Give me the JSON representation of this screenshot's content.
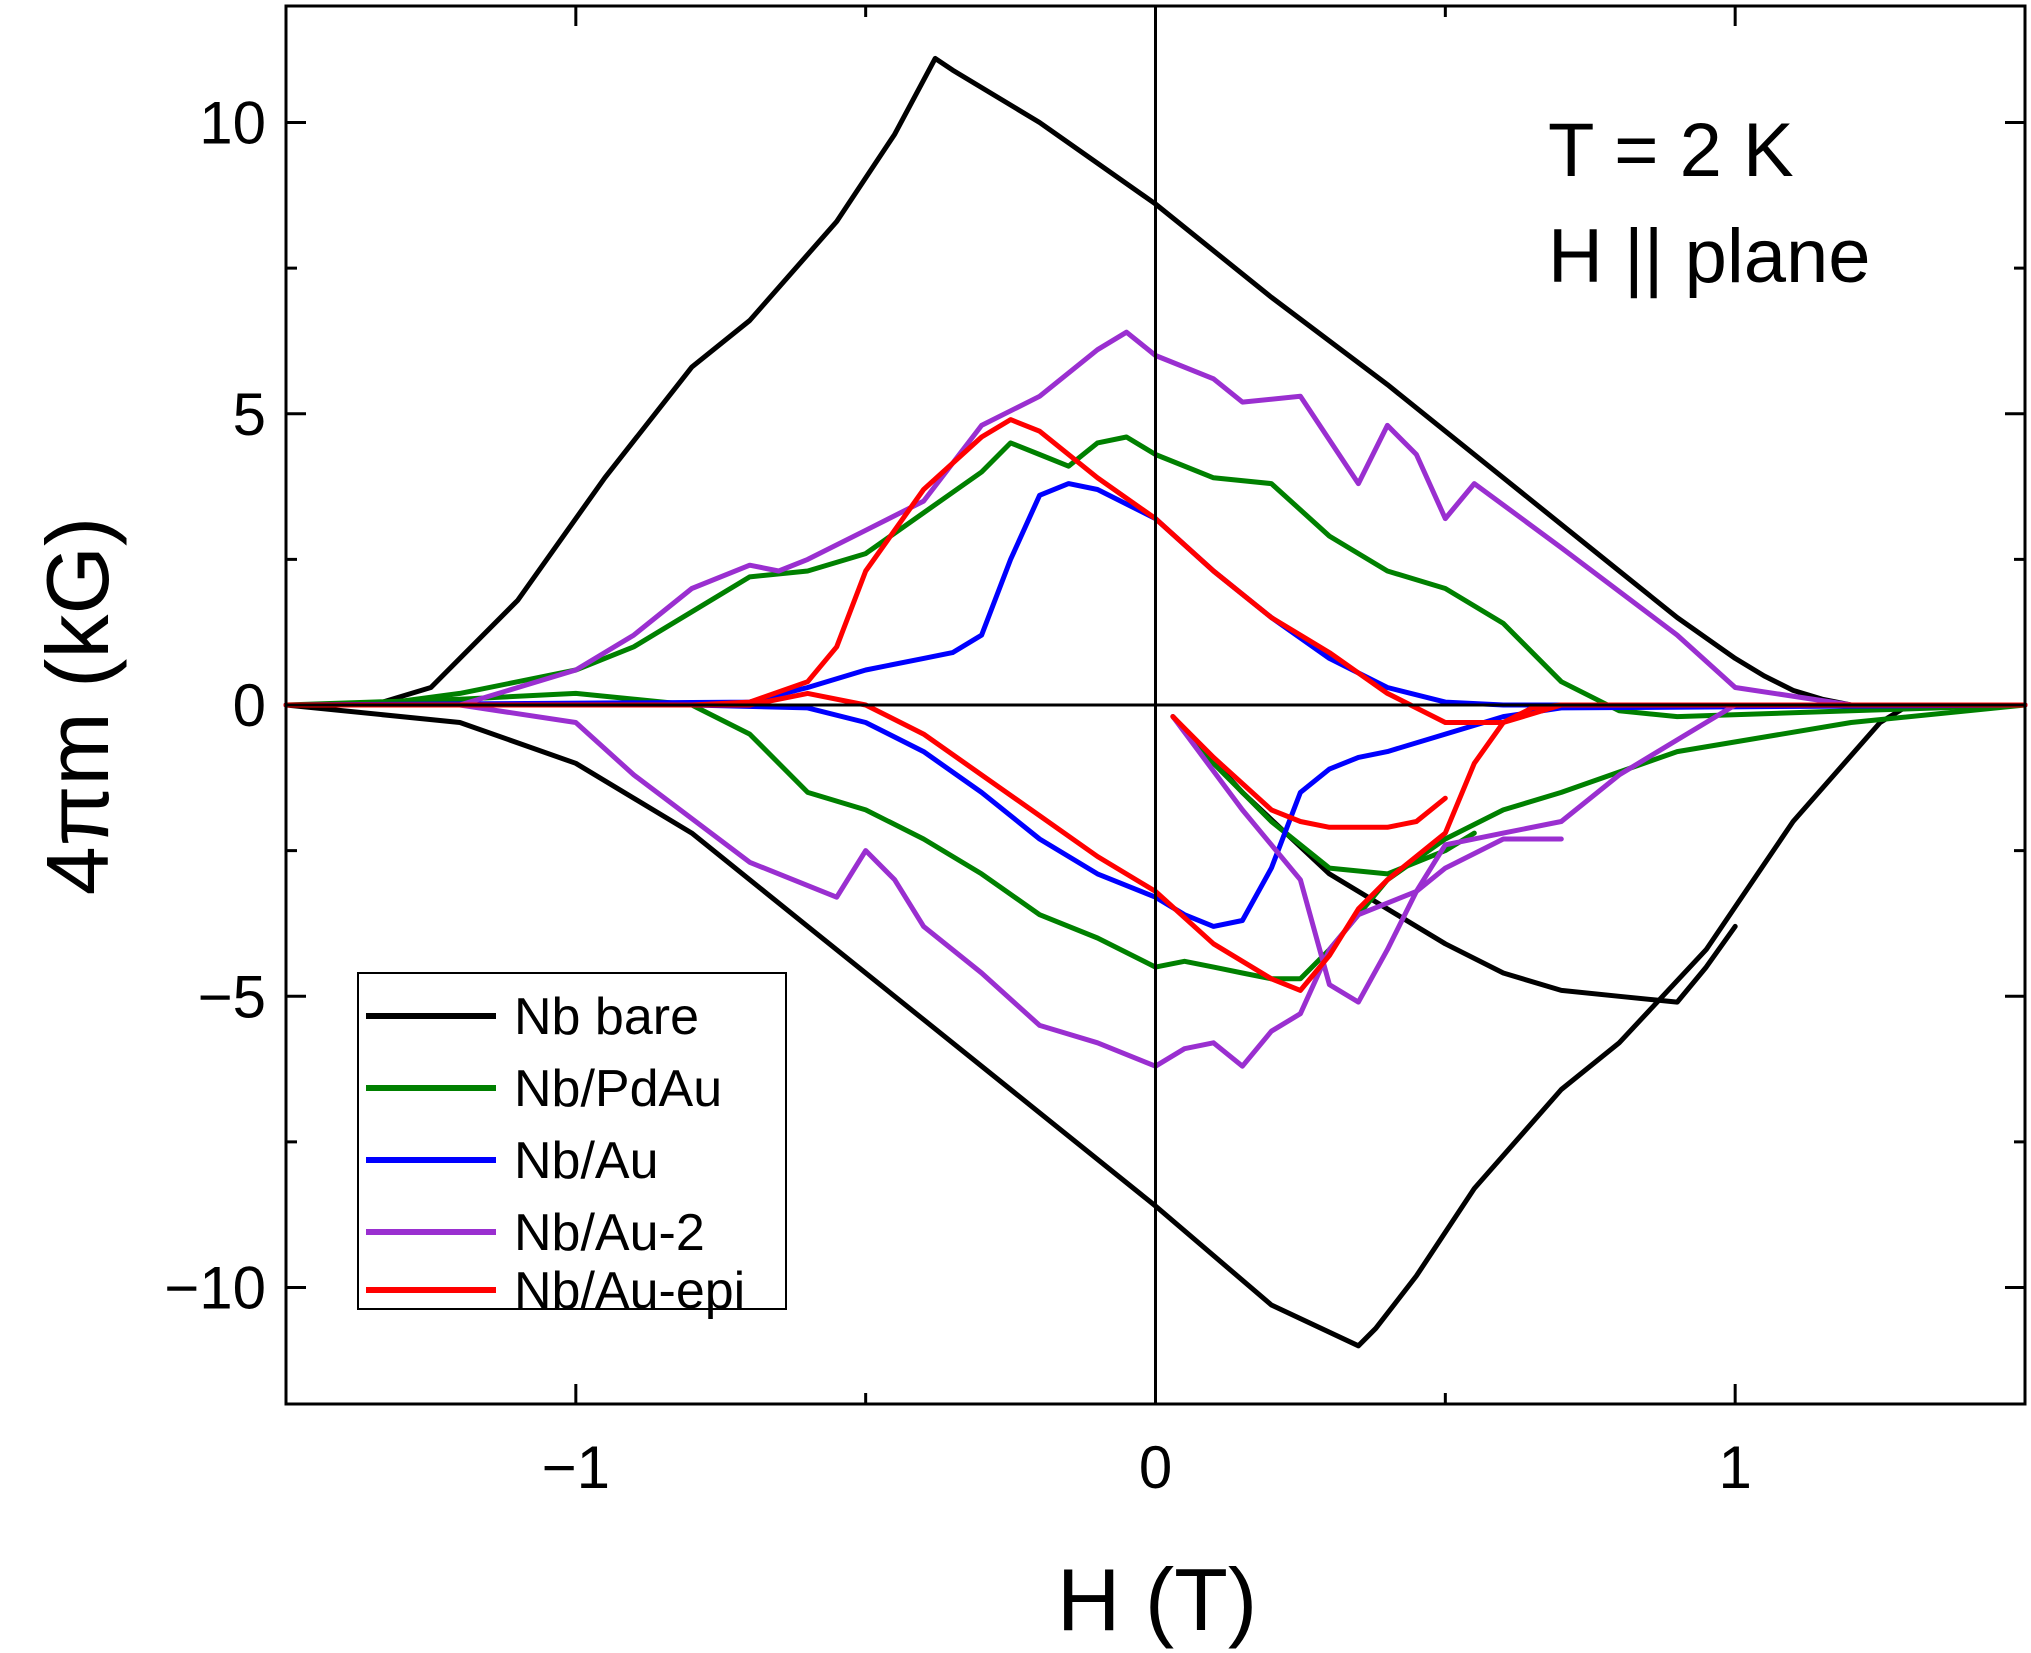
{
  "chart_data": {
    "type": "line",
    "title": "",
    "xlabel": "H (T)",
    "ylabel": "4πm (kG)",
    "xlim": [
      -1.5,
      1.5
    ],
    "ylim": [
      -12,
      12
    ],
    "xticks": [
      -1,
      0,
      1
    ],
    "xtick_labels": [
      "−1",
      "0",
      "1"
    ],
    "xminor": [
      -1.5,
      -0.5,
      0.5,
      1.5
    ],
    "yticks": [
      -10,
      -5,
      0,
      5,
      10
    ],
    "ytick_labels": [
      "−10",
      "−5",
      "0",
      "5",
      "10"
    ],
    "yminor": [
      -12.5,
      -7.5,
      -2.5,
      2.5,
      7.5
    ],
    "grid": false,
    "zero_lines": true,
    "legend_position": "bottom-left",
    "annotations": [
      "T = 2 K",
      "H || plane"
    ],
    "series": [
      {
        "name": "Nb bare",
        "color": "#000000",
        "branches": [
          {
            "x": [
              1.5,
              1.2,
              1.15,
              1.1,
              1.05,
              1.0,
              0.9,
              0.8,
              0.6,
              0.4,
              0.2,
              0.0,
              -0.2,
              -0.35,
              -0.38,
              -0.45,
              -0.55,
              -0.7,
              -0.8,
              -0.95,
              -1.1,
              -1.25,
              -1.35,
              -1.5
            ],
            "y": [
              0.0,
              0.0,
              0.1,
              0.25,
              0.5,
              0.8,
              1.5,
              2.3,
              3.9,
              5.5,
              7.0,
              8.6,
              10.0,
              10.9,
              11.1,
              9.8,
              8.3,
              6.6,
              5.8,
              3.9,
              1.8,
              0.3,
              0.0,
              0.0
            ]
          },
          {
            "x": [
              -1.5,
              -1.2,
              -1.0,
              -0.8,
              -0.6,
              -0.4,
              -0.2,
              0.0,
              0.2,
              0.35,
              0.38,
              0.45,
              0.55,
              0.7,
              0.8,
              0.95,
              1.1,
              1.25,
              1.3,
              1.5
            ],
            "y": [
              0.0,
              -0.3,
              -1.0,
              -2.2,
              -3.8,
              -5.4,
              -7.0,
              -8.6,
              -10.3,
              -11.0,
              -10.7,
              -9.8,
              -8.3,
              -6.6,
              -5.8,
              -4.2,
              -2.0,
              -0.3,
              0.0,
              0.0
            ]
          },
          {
            "x": [
              0.03,
              0.15,
              0.3,
              0.5,
              0.6,
              0.7,
              0.8,
              0.9,
              0.95,
              1.0
            ],
            "y": [
              -0.2,
              -1.5,
              -2.9,
              -4.1,
              -4.6,
              -4.9,
              -5.0,
              -5.1,
              -4.5,
              -3.8
            ]
          }
        ]
      },
      {
        "name": "Nb/PdAu",
        "color": "#008000",
        "branches": [
          {
            "x": [
              1.5,
              1.2,
              0.9,
              0.8,
              0.7,
              0.6,
              0.5,
              0.4,
              0.3,
              0.2,
              0.1,
              0.0,
              -0.05,
              -0.1,
              -0.15,
              -0.2,
              -0.25,
              -0.3,
              -0.4,
              -0.5,
              -0.6,
              -0.7,
              -0.8,
              -0.9,
              -1.0,
              -1.1,
              -1.2,
              -1.35,
              -1.5
            ],
            "y": [
              0.0,
              -0.1,
              -0.2,
              -0.1,
              0.4,
              1.4,
              2.0,
              2.3,
              2.9,
              3.8,
              3.9,
              4.3,
              4.6,
              4.5,
              4.1,
              4.3,
              4.5,
              4.0,
              3.3,
              2.6,
              2.3,
              2.2,
              1.6,
              1.0,
              0.6,
              0.4,
              0.2,
              0.0,
              0.0
            ]
          },
          {
            "x": [
              -1.5,
              -1.2,
              -1.0,
              -0.8,
              -0.7,
              -0.6,
              -0.5,
              -0.4,
              -0.3,
              -0.2,
              -0.1,
              0.0,
              0.05,
              0.1,
              0.15,
              0.2,
              0.25,
              0.3,
              0.4,
              0.5,
              0.6,
              0.7,
              0.9,
              1.2,
              1.5
            ],
            "y": [
              0.0,
              0.1,
              0.2,
              0.0,
              -0.5,
              -1.5,
              -1.8,
              -2.3,
              -2.9,
              -3.6,
              -4.0,
              -4.5,
              -4.4,
              -4.5,
              -4.6,
              -4.7,
              -4.7,
              -4.2,
              -3.0,
              -2.3,
              -1.8,
              -1.5,
              -0.8,
              -0.3,
              0.0
            ]
          },
          {
            "x": [
              0.03,
              0.1,
              0.2,
              0.3,
              0.4,
              0.5,
              0.55
            ],
            "y": [
              -0.2,
              -1.0,
              -2.0,
              -2.8,
              -2.9,
              -2.5,
              -2.2
            ]
          }
        ]
      },
      {
        "name": "Nb/Au",
        "color": "#0000ff",
        "branches": [
          {
            "x": [
              1.5,
              0.8,
              0.6,
              0.5,
              0.4,
              0.3,
              0.2,
              0.1,
              0.0,
              -0.1,
              -0.15,
              -0.2,
              -0.25,
              -0.3,
              -0.35,
              -0.4,
              -0.5,
              -0.6,
              -0.7,
              -1.5
            ],
            "y": [
              0.0,
              0.0,
              0.0,
              0.05,
              0.3,
              0.8,
              1.5,
              2.3,
              3.2,
              3.7,
              3.8,
              3.6,
              2.5,
              1.2,
              0.9,
              0.8,
              0.6,
              0.3,
              0.05,
              0.0
            ]
          },
          {
            "x": [
              -1.5,
              -0.8,
              -0.6,
              -0.5,
              -0.4,
              -0.3,
              -0.2,
              -0.1,
              0.0,
              0.05,
              0.1,
              0.15,
              0.2,
              0.25,
              0.3,
              0.35,
              0.4,
              0.5,
              0.6,
              0.7,
              1.5
            ],
            "y": [
              0.0,
              0.0,
              -0.05,
              -0.3,
              -0.8,
              -1.5,
              -2.3,
              -2.9,
              -3.3,
              -3.6,
              -3.8,
              -3.7,
              -2.8,
              -1.5,
              -1.1,
              -0.9,
              -0.8,
              -0.5,
              -0.2,
              -0.05,
              0.0
            ]
          }
        ]
      },
      {
        "name": "Nb/Au-2",
        "color": "#9a2fd0",
        "branches": [
          {
            "x": [
              1.5,
              1.2,
              1.0,
              0.9,
              0.7,
              0.55,
              0.5,
              0.45,
              0.4,
              0.35,
              0.25,
              0.15,
              0.1,
              0.0,
              -0.05,
              -0.1,
              -0.2,
              -0.3,
              -0.4,
              -0.5,
              -0.6,
              -0.65,
              -0.7,
              -0.8,
              -0.9,
              -1.0,
              -1.1,
              -1.2,
              -1.5
            ],
            "y": [
              0.0,
              0.0,
              0.3,
              1.2,
              2.7,
              3.8,
              3.2,
              4.3,
              4.8,
              3.8,
              5.3,
              5.2,
              5.6,
              6.0,
              6.4,
              6.1,
              5.3,
              4.8,
              3.5,
              3.0,
              2.5,
              2.3,
              2.4,
              2.0,
              1.2,
              0.6,
              0.3,
              0.0,
              0.0
            ]
          },
          {
            "x": [
              -1.5,
              -1.2,
              -1.0,
              -0.9,
              -0.7,
              -0.55,
              -0.5,
              -0.45,
              -0.4,
              -0.3,
              -0.2,
              -0.1,
              0.0,
              0.05,
              0.1,
              0.15,
              0.2,
              0.25,
              0.3,
              0.35,
              0.45,
              0.5,
              0.6,
              0.7,
              0.8,
              0.9,
              1.0,
              1.5
            ],
            "y": [
              0.0,
              0.0,
              -0.3,
              -1.2,
              -2.7,
              -3.3,
              -2.5,
              -3.0,
              -3.8,
              -4.6,
              -5.5,
              -5.8,
              -6.2,
              -5.9,
              -5.8,
              -6.2,
              -5.6,
              -5.3,
              -4.2,
              -3.6,
              -3.2,
              -2.4,
              -2.2,
              -2.0,
              -1.2,
              -0.6,
              0.0,
              0.0
            ]
          },
          {
            "x": [
              0.03,
              0.15,
              0.25,
              0.3,
              0.35,
              0.4,
              0.45,
              0.5,
              0.6,
              0.7
            ],
            "y": [
              -0.2,
              -1.8,
              -3.0,
              -4.8,
              -5.1,
              -4.2,
              -3.2,
              -2.8,
              -2.3,
              -2.3
            ]
          }
        ]
      },
      {
        "name": "Nb/Au-epi",
        "color": "#ff0000",
        "branches": [
          {
            "x": [
              1.5,
              0.7,
              0.6,
              0.5,
              0.4,
              0.3,
              0.2,
              0.1,
              0.0,
              -0.1,
              -0.2,
              -0.25,
              -0.3,
              -0.4,
              -0.5,
              -0.55,
              -0.6,
              -0.7,
              -0.8,
              -1.5
            ],
            "y": [
              0.0,
              0.0,
              -0.3,
              -0.3,
              0.2,
              0.9,
              1.5,
              2.3,
              3.2,
              3.9,
              4.7,
              4.9,
              4.6,
              3.7,
              2.3,
              1.0,
              0.4,
              0.05,
              0.0,
              0.0
            ]
          },
          {
            "x": [
              -1.5,
              -0.7,
              -0.6,
              -0.5,
              -0.4,
              -0.3,
              -0.2,
              -0.1,
              0.0,
              0.1,
              0.2,
              0.25,
              0.3,
              0.35,
              0.4,
              0.5,
              0.55,
              0.6,
              0.65,
              0.7,
              1.5
            ],
            "y": [
              0.0,
              0.0,
              0.2,
              0.0,
              -0.5,
              -1.2,
              -1.9,
              -2.6,
              -3.2,
              -4.1,
              -4.7,
              -4.9,
              -4.3,
              -3.5,
              -3.0,
              -2.2,
              -1.0,
              -0.3,
              -0.05,
              0.0,
              0.0
            ]
          },
          {
            "x": [
              0.03,
              0.1,
              0.2,
              0.25,
              0.3,
              0.4,
              0.45,
              0.5
            ],
            "y": [
              -0.2,
              -0.9,
              -1.8,
              -2.0,
              -2.1,
              -2.1,
              -2.0,
              -1.6
            ]
          }
        ]
      }
    ]
  }
}
